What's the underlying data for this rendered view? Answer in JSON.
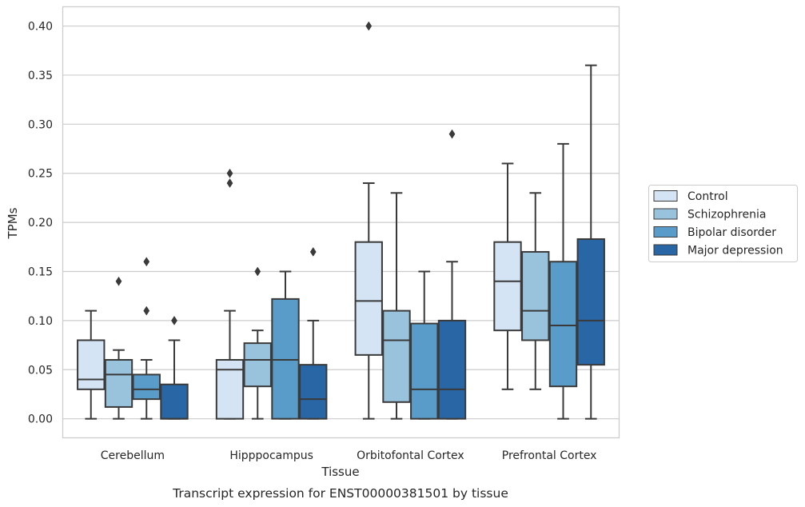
{
  "chart_data": {
    "type": "box",
    "xlabel": "Tissue",
    "ylabel": "TPMs",
    "caption": "Transcript expression for ENST00000381501 by tissue",
    "ylim": [
      -0.019,
      0.42
    ],
    "yticks": [
      "0.00",
      "0.05",
      "0.10",
      "0.15",
      "0.20",
      "0.25",
      "0.30",
      "0.35",
      "0.40"
    ],
    "ytick_values": [
      0,
      0.05,
      0.1,
      0.15,
      0.2,
      0.25,
      0.3,
      0.35,
      0.4
    ],
    "grid": "horizontal",
    "legend_position": "right",
    "categories": [
      "Cerebellum",
      "Hipppocampus",
      "Orbitofontal Cortex",
      "Prefrontal Cortex"
    ],
    "series": [
      {
        "name": "Control",
        "color": "#d4e4f4",
        "boxes": [
          {
            "whislo": 0.0,
            "q1": 0.03,
            "med": 0.04,
            "q3": 0.08,
            "whishi": 0.11,
            "fliers": []
          },
          {
            "whislo": 0.0,
            "q1": 0.0,
            "med": 0.05,
            "q3": 0.06,
            "whishi": 0.11,
            "fliers": [
              0.24,
              0.25
            ]
          },
          {
            "whislo": 0.0,
            "q1": 0.065,
            "med": 0.12,
            "q3": 0.18,
            "whishi": 0.24,
            "fliers": [
              0.4
            ]
          },
          {
            "whislo": 0.03,
            "q1": 0.09,
            "med": 0.14,
            "q3": 0.18,
            "whishi": 0.26,
            "fliers": []
          }
        ]
      },
      {
        "name": "Schizophrenia",
        "color": "#99c2dc",
        "boxes": [
          {
            "whislo": 0.0,
            "q1": 0.012,
            "med": 0.045,
            "q3": 0.06,
            "whishi": 0.07,
            "fliers": [
              0.14
            ]
          },
          {
            "whislo": 0.0,
            "q1": 0.033,
            "med": 0.06,
            "q3": 0.077,
            "whishi": 0.09,
            "fliers": [
              0.15
            ]
          },
          {
            "whislo": 0.0,
            "q1": 0.017,
            "med": 0.08,
            "q3": 0.11,
            "whishi": 0.23,
            "fliers": []
          },
          {
            "whislo": 0.03,
            "q1": 0.08,
            "med": 0.11,
            "q3": 0.17,
            "whishi": 0.23,
            "fliers": []
          }
        ]
      },
      {
        "name": "Bipolar disorder",
        "color": "#5a9cc9",
        "boxes": [
          {
            "whislo": 0.0,
            "q1": 0.02,
            "med": 0.03,
            "q3": 0.045,
            "whishi": 0.06,
            "fliers": [
              0.11,
              0.16
            ]
          },
          {
            "whislo": 0.0,
            "q1": 0.0,
            "med": 0.06,
            "q3": 0.122,
            "whishi": 0.15,
            "fliers": []
          },
          {
            "whislo": 0.0,
            "q1": 0.0,
            "med": 0.03,
            "q3": 0.097,
            "whishi": 0.15,
            "fliers": []
          },
          {
            "whislo": 0.0,
            "q1": 0.033,
            "med": 0.095,
            "q3": 0.16,
            "whishi": 0.28,
            "fliers": []
          }
        ]
      },
      {
        "name": "Major depression",
        "color": "#2866a5",
        "boxes": [
          {
            "whislo": 0.0,
            "q1": 0.0,
            "med": 0.0,
            "q3": 0.035,
            "whishi": 0.08,
            "fliers": [
              0.1
            ]
          },
          {
            "whislo": 0.0,
            "q1": 0.0,
            "med": 0.02,
            "q3": 0.055,
            "whishi": 0.1,
            "fliers": [
              0.17
            ]
          },
          {
            "whislo": 0.0,
            "q1": 0.0,
            "med": 0.03,
            "q3": 0.1,
            "whishi": 0.16,
            "fliers": [
              0.29
            ]
          },
          {
            "whislo": 0.0,
            "q1": 0.055,
            "med": 0.1,
            "q3": 0.183,
            "whishi": 0.36,
            "fliers": []
          }
        ]
      }
    ]
  }
}
